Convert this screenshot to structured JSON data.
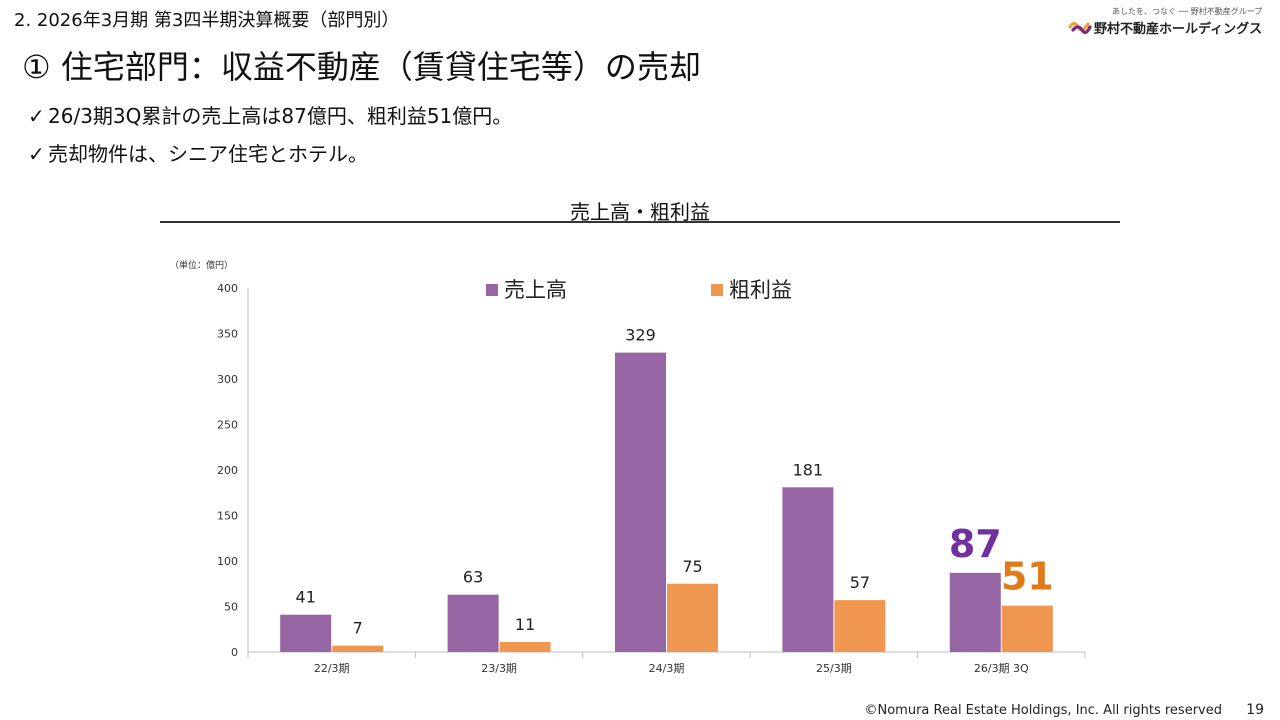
{
  "header": {
    "section_title": "2.  2026年3月期 第3四半期決算概要（部門別）",
    "logo_tagline": "あしたを、つなぐ ── 野村不動産グループ",
    "logo_name": "野村不動産ホールディングス"
  },
  "main_title": "① 住宅部門：収益不動産（賃貸住宅等）の売却",
  "bullets": [
    "26/3期3Q累計の売上高は87億円、粗利益51億円。",
    "売却物件は、シニア住宅とホテル。"
  ],
  "bullet_mark": "✓",
  "chart_data": {
    "type": "bar",
    "title": "売上高・粗利益",
    "unit_label": "（単位：億円）",
    "categories": [
      "22/3期",
      "23/3期",
      "24/3期",
      "25/3期",
      "26/3期 3Q"
    ],
    "series": [
      {
        "name": "売上高",
        "color": "#9566a3",
        "values": [
          41,
          63,
          329,
          181,
          87
        ]
      },
      {
        "name": "粗利益",
        "color": "#ef9650",
        "values": [
          7,
          11,
          75,
          57,
          51
        ]
      }
    ],
    "highlight_colors": [
      "#7030a0",
      "#e07b1a"
    ],
    "ylim": [
      0,
      400
    ],
    "yticks": [
      0,
      50,
      100,
      150,
      200,
      250,
      300,
      350,
      400
    ],
    "legend_position": "top"
  },
  "footer": {
    "copyright": "©Nomura Real Estate Holdings, Inc. All rights reserved",
    "page_number": "19"
  }
}
